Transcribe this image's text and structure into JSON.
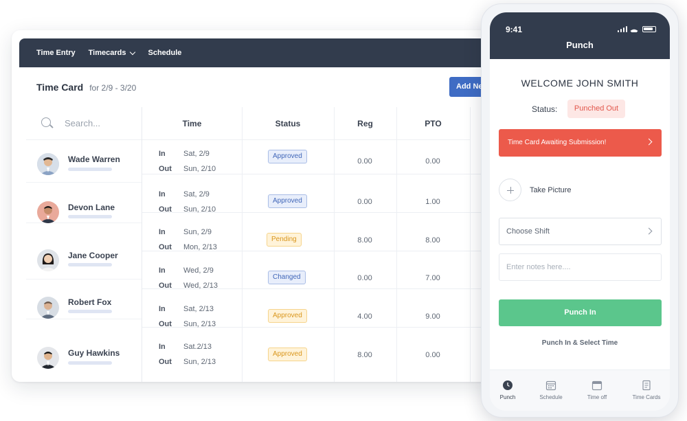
{
  "nav": {
    "time_entry": "Time Entry",
    "timecards": "Timecards",
    "schedule": "Schedule"
  },
  "timecard": {
    "title": "Time Card",
    "range": "for 2/9 - 3/20",
    "add_button": "Add New"
  },
  "search": {
    "placeholder": "Search..."
  },
  "columns": [
    "Time",
    "Status",
    "Reg",
    "PTO"
  ],
  "io_labels": {
    "in": "In",
    "out": "Out"
  },
  "rows": [
    {
      "name": "Wade Warren",
      "in": "Sat, 2/9",
      "out": "Sun, 2/10",
      "status": "Approved",
      "reg": "0.00",
      "pto": "0.00"
    },
    {
      "name": "Devon Lane",
      "in": "Sat, 2/9",
      "out": "Sun, 2/10",
      "status": "Approved",
      "reg": "0.00",
      "pto": "1.00"
    },
    {
      "name": "Jane Cooper",
      "in": "Sun, 2/9",
      "out": "Mon, 2/13",
      "status": "Pending",
      "reg": "8.00",
      "pto": "8.00"
    },
    {
      "name": "Robert Fox",
      "in": "Wed, 2/9",
      "out": "Wed, 2/13",
      "status": "Changed",
      "reg": "0.00",
      "pto": "7.00"
    },
    {
      "name": "Robert Fox",
      "in": "Sat, 2/13",
      "out": "Sun, 2/13",
      "status": "Approved",
      "reg": "4.00",
      "pto": "9.00"
    },
    {
      "name": "Guy Hawkins",
      "in": "Sat.2/13",
      "out": "Sun, 2/13",
      "status": "Approved",
      "reg": "8.00",
      "pto": "0.00"
    }
  ],
  "phone": {
    "time": "9:41",
    "title": "Punch",
    "welcome": "WELCOME JOHN SMITH",
    "status_label": "Status:",
    "status_value": "Punched Out",
    "alert": "Time Card Awaiting Submission!",
    "take_picture": "Take Picture",
    "choose_shift": "Choose Shift",
    "notes_placeholder": "Enter notes here....",
    "punch_in": "Punch In",
    "punch_select": "Punch In & Select Time",
    "tabs": [
      "Punch",
      "Schedule",
      "Time off",
      "Time Cards"
    ]
  },
  "colors": {
    "nav_bg": "#323c4d",
    "accent_blue": "#3f6cc4",
    "alert_red": "#ec5a4b",
    "success_green": "#5bc68c",
    "pending_amber": "#d9961c"
  }
}
